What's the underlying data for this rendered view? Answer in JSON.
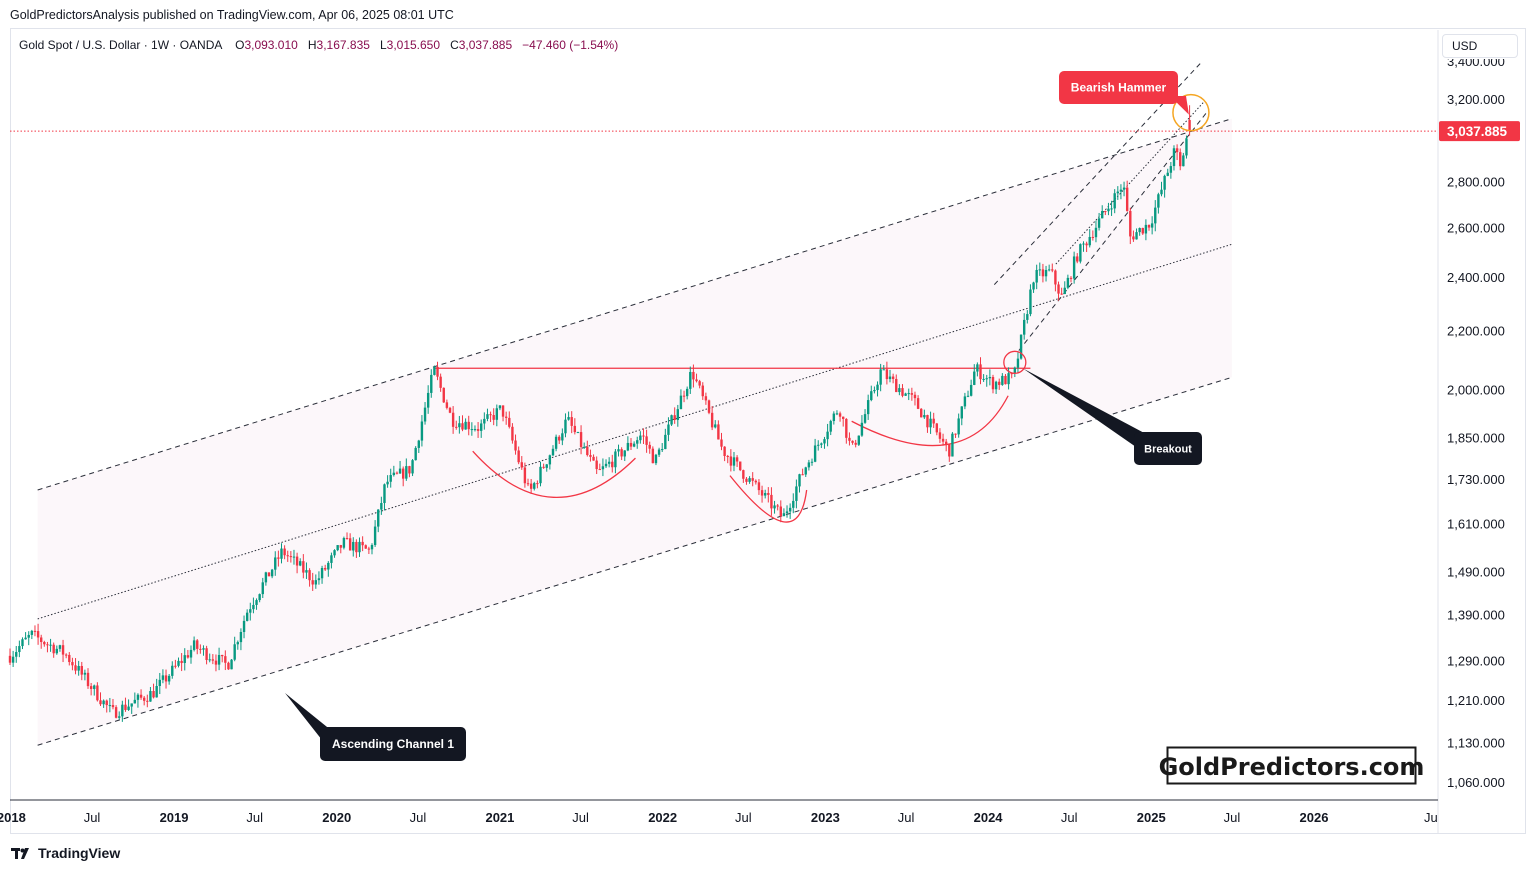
{
  "header": {
    "publisher": "GoldPredictorsAnalysis published on TradingView.com, Apr 06, 2025 08:01 UTC"
  },
  "legend": {
    "symbol": "Gold Spot / U.S. Dollar · 1W · OANDA",
    "open_label": "O",
    "open": "3,093.010",
    "high_label": "H",
    "high": "3,167.835",
    "low_label": "L",
    "low": "3,015.650",
    "close_label": "C",
    "close": "3,037.885",
    "change": "−47.460 (−1.54%)"
  },
  "currency": "USD",
  "price_tag": "3,037.885",
  "brand": "GoldPredictors.com",
  "footer": {
    "logo_text": "TradingView"
  },
  "colors": {
    "up": "#089981",
    "down": "#f23645",
    "resistance": "#f23645",
    "channel_fill": "#fcf7fa",
    "last_price": "#f23645",
    "hammer_circle": "#f5a623",
    "callout_dark": "#131722",
    "callout_red": "#f23645"
  },
  "chart_data": {
    "type": "candlestick",
    "title": "Gold Spot / U.S. Dollar · 1W · OANDA",
    "x_ticks": [
      "2018",
      "Jul",
      "2019",
      "Jul",
      "2020",
      "Jul",
      "2021",
      "Jul",
      "2022",
      "Jul",
      "2023",
      "Jul",
      "2024",
      "Jul",
      "2025",
      "Jul",
      "2026",
      "Jul"
    ],
    "y_ticks": [
      "1,060.000",
      "1,130.000",
      "1,210.000",
      "1,290.000",
      "1,390.000",
      "1,490.000",
      "1,610.000",
      "1,730.000",
      "1,850.000",
      "2,000.000",
      "2,200.000",
      "2,400.000",
      "2,600.000",
      "2,800.000",
      "3,200.000"
    ],
    "y_scale": "log",
    "ylim": [
      1020,
      3450
    ],
    "last_price": 3037.885,
    "trend": [
      [
        "2017-12-29",
        1300
      ],
      [
        "2018-02-15",
        1345
      ],
      [
        "2018-05-01",
        1305
      ],
      [
        "2018-08-15",
        1185
      ],
      [
        "2018-11-15",
        1225
      ],
      [
        "2019-02-15",
        1320
      ],
      [
        "2019-05-01",
        1280
      ],
      [
        "2019-06-15",
        1400
      ],
      [
        "2019-09-01",
        1540
      ],
      [
        "2019-11-15",
        1465
      ],
      [
        "2020-01-15",
        1560
      ],
      [
        "2020-03-15",
        1540
      ],
      [
        "2020-04-20",
        1720
      ],
      [
        "2020-06-15",
        1760
      ],
      [
        "2020-08-06",
        2065
      ],
      [
        "2020-09-15",
        1905
      ],
      [
        "2020-11-15",
        1880
      ],
      [
        "2021-01-05",
        1940
      ],
      [
        "2021-03-08",
        1690
      ],
      [
        "2021-06-01",
        1905
      ],
      [
        "2021-08-08",
        1745
      ],
      [
        "2021-11-15",
        1860
      ],
      [
        "2021-12-15",
        1780
      ],
      [
        "2022-03-08",
        2060
      ],
      [
        "2022-05-15",
        1815
      ],
      [
        "2022-09-28",
        1625
      ],
      [
        "2022-11-15",
        1760
      ],
      [
        "2023-02-01",
        1945
      ],
      [
        "2023-03-01",
        1810
      ],
      [
        "2023-05-05",
        2060
      ],
      [
        "2023-07-20",
        1960
      ],
      [
        "2023-10-05",
        1810
      ],
      [
        "2023-12-04",
        2070
      ],
      [
        "2024-01-10",
        2020
      ],
      [
        "2024-02-28",
        2040
      ],
      [
        "2024-04-12",
        2400
      ],
      [
        "2024-05-20",
        2420
      ],
      [
        "2024-06-15",
        2320
      ],
      [
        "2024-07-17",
        2480
      ],
      [
        "2024-10-30",
        2790
      ],
      [
        "2024-11-15",
        2560
      ],
      [
        "2024-12-30",
        2620
      ],
      [
        "2025-02-24",
        2950
      ],
      [
        "2025-03-07",
        2860
      ],
      [
        "2025-04-01",
        3120
      ]
    ],
    "resistance": {
      "from": "2020-08-06",
      "to": "2024-04-05",
      "y": 2070
    },
    "channel": {
      "upper": [
        [
          "2018-03-01",
          1700
        ],
        [
          "2025-07-01",
          3100
        ]
      ],
      "lower": [
        [
          "2018-03-01",
          1125
        ],
        [
          "2025-07-01",
          2040
        ]
      ],
      "middle": [
        [
          "2018-03-01",
          1380
        ],
        [
          "2025-07-01",
          2530
        ]
      ]
    },
    "steep_channel": {
      "upper": [
        [
          "2024-01-15",
          2370
        ],
        [
          "2025-04-25",
          3400
        ]
      ],
      "lower": [
        [
          "2024-03-10",
          2130
        ],
        [
          "2025-05-05",
          3130
        ]
      ],
      "middle": [
        [
          "2024-06-01",
          2450
        ],
        [
          "2025-05-01",
          3190
        ]
      ]
    },
    "annotations": [
      {
        "text": "Bearish Hammer",
        "date": "2025-03-31",
        "value": 3100
      },
      {
        "text": "Breakout",
        "date": "2024-03-01",
        "value": 2090
      },
      {
        "text": "Ascending Channel 1",
        "date": "2019-06-15",
        "value": 1270
      }
    ],
    "cup_arcs": [
      {
        "from": [
          "2020-11-01",
          1810
        ],
        "bottom": [
          "2021-05-01",
          1680
        ],
        "to": [
          "2021-11-01",
          1790
        ]
      },
      {
        "from": [
          "2022-06-01",
          1740
        ],
        "bottom": [
          "2022-09-28",
          1615
        ],
        "to": [
          "2022-11-20",
          1700
        ]
      },
      {
        "from": [
          "2023-03-01",
          1900
        ],
        "bottom": [
          "2023-10-01",
          1830
        ],
        "to": [
          "2024-02-15",
          1980
        ]
      }
    ]
  }
}
